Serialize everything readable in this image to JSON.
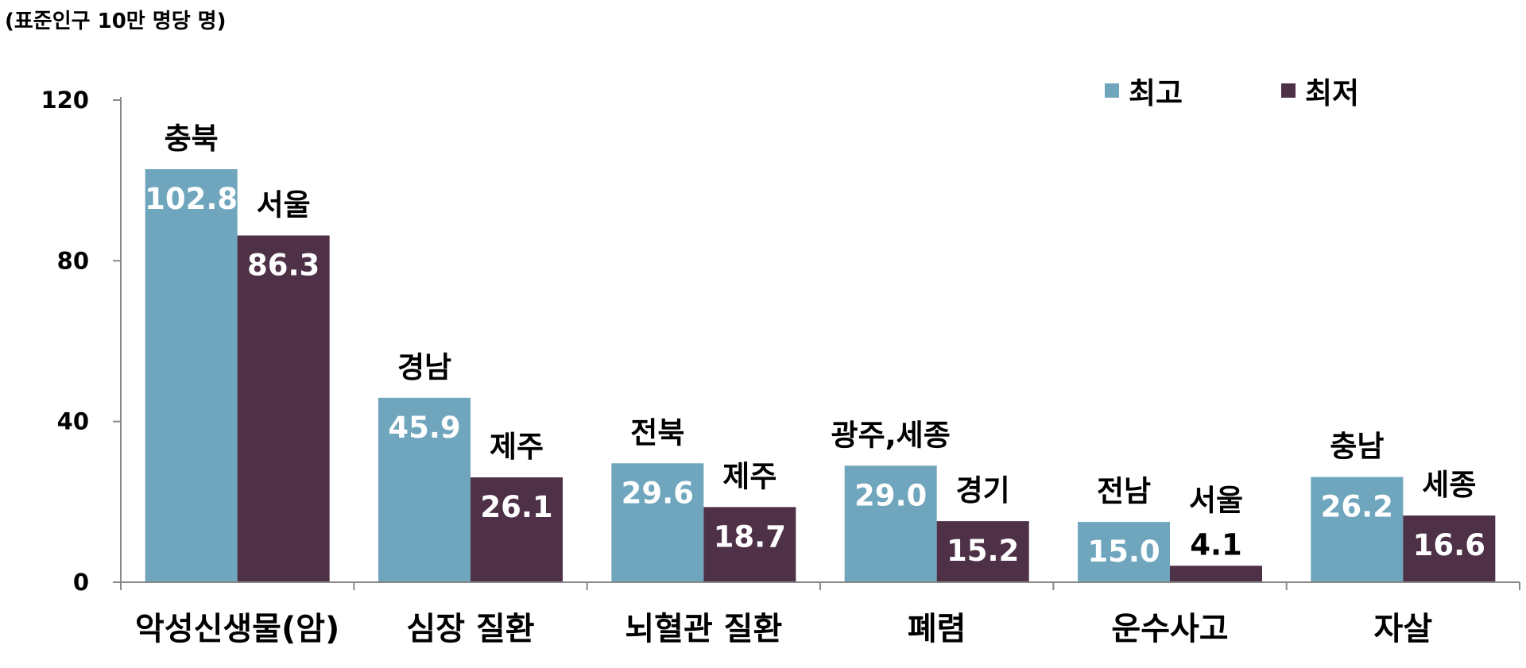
{
  "chart_data": {
    "type": "bar",
    "unit_note": "(표준인구 10만 명당 명)",
    "categories": [
      "악성신생물(암)",
      "심장 질환",
      "뇌혈관 질환",
      "폐렴",
      "운수사고",
      "자살"
    ],
    "series": [
      {
        "name": "최고",
        "color": "#6fa5bd",
        "values": [
          102.8,
          45.9,
          29.6,
          29.0,
          15.0,
          26.2
        ],
        "labels": [
          "102.8",
          "45.9",
          "29.6",
          "29.0",
          "15.0",
          "26.2"
        ],
        "regions": [
          "충북",
          "경남",
          "전북",
          "광주,세종",
          "전남",
          "충남"
        ]
      },
      {
        "name": "최저",
        "color": "#4e3147",
        "values": [
          86.3,
          26.1,
          18.7,
          15.2,
          4.1,
          16.6
        ],
        "labels": [
          "86.3",
          "26.1",
          "18.7",
          "15.2",
          "4.1",
          "16.6"
        ],
        "regions": [
          "서울",
          "제주",
          "제주",
          "경기",
          "서울",
          "세종"
        ]
      }
    ],
    "yticks": [
      "0",
      "40",
      "80",
      "120"
    ],
    "ylim": [
      0,
      120
    ],
    "legend_position": "top-right",
    "grid": false
  }
}
